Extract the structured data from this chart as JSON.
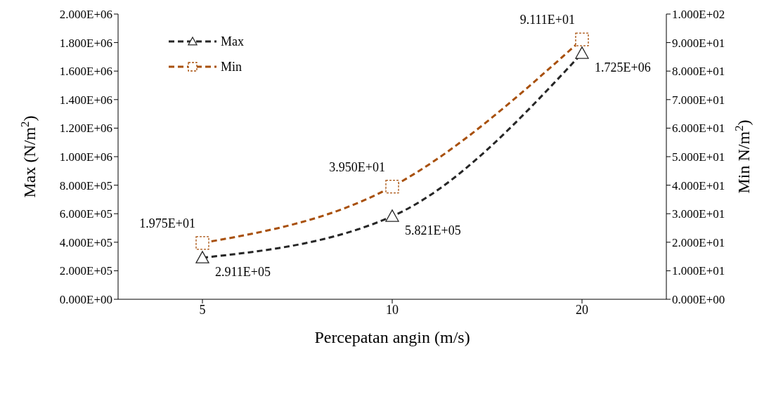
{
  "chart_data": {
    "type": "line",
    "xlabel": "Percepatan angin (m/s)",
    "ylabel": "Max (N/m$^{2}$)",
    "y2label": "Min N/m$^{2}$)",
    "categories": [
      "5",
      "10",
      "20"
    ],
    "series": [
      {
        "name": "Max",
        "color": "#262626",
        "marker": "triangle",
        "values": [
          291100,
          582100,
          1725000
        ],
        "value_labels": [
          "2.911E+05",
          "5.821E+05",
          "1.725E+06"
        ]
      },
      {
        "name": "Min",
        "color": "#a8500c",
        "marker": "square",
        "axis": "y2",
        "values": [
          19.75,
          39.5,
          91.11
        ],
        "value_labels": [
          "1.975E+01",
          "3.950E+01",
          "9.111E+01"
        ]
      }
    ],
    "ylim": [
      0,
      2000000
    ],
    "yticks": [
      {
        "value": 0,
        "label": "0.000E+00"
      },
      {
        "value": 200000,
        "label": "2.000E+05"
      },
      {
        "value": 400000,
        "label": "4.000E+05"
      },
      {
        "value": 600000,
        "label": "6.000E+05"
      },
      {
        "value": 800000,
        "label": "8.000E+05"
      },
      {
        "value": 1000000,
        "label": "1.000E+06"
      },
      {
        "value": 1200000,
        "label": "1.200E+06"
      },
      {
        "value": 1400000,
        "label": "1.400E+06"
      },
      {
        "value": 1600000,
        "label": "1.600E+06"
      },
      {
        "value": 1800000,
        "label": "1.800E+06"
      },
      {
        "value": 2000000,
        "label": "2.000E+06"
      }
    ],
    "y2lim": [
      0,
      100
    ],
    "y2ticks": [
      {
        "value": 0,
        "label": "0.000E+00"
      },
      {
        "value": 10,
        "label": "1.000E+01"
      },
      {
        "value": 20,
        "label": "2.000E+01"
      },
      {
        "value": 30,
        "label": "3.000E+01"
      },
      {
        "value": 40,
        "label": "4.000E+01"
      },
      {
        "value": 50,
        "label": "5.000E+01"
      },
      {
        "value": 60,
        "label": "6.000E+01"
      },
      {
        "value": 70,
        "label": "7.000E+01"
      },
      {
        "value": 80,
        "label": "8.000E+01"
      },
      {
        "value": 90,
        "label": "9.000E+01"
      },
      {
        "value": 100,
        "label": "1.000E+02"
      }
    ],
    "grid": false,
    "legend": "top left",
    "line_style": "dashed"
  }
}
